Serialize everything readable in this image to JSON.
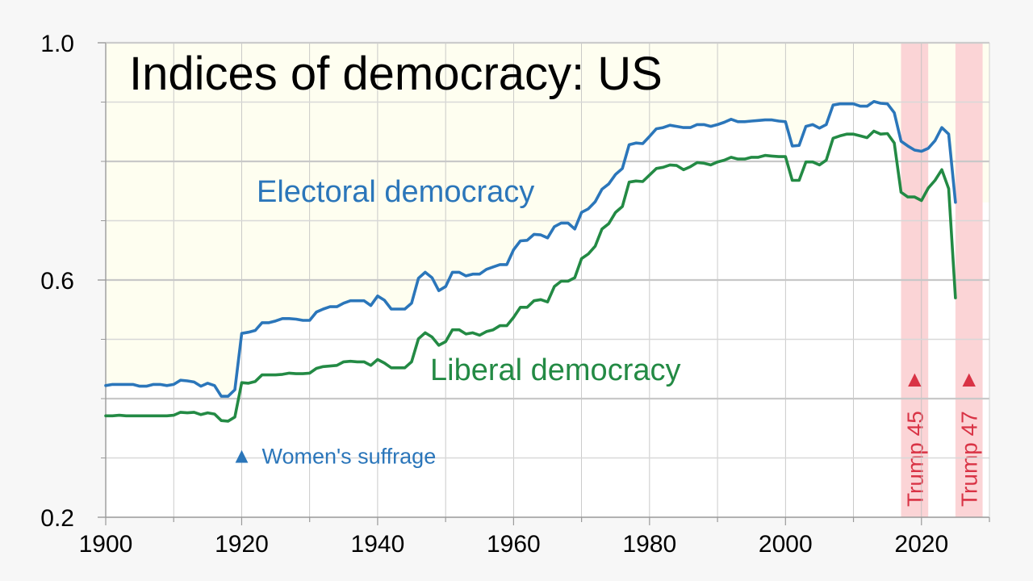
{
  "chart_data": {
    "type": "line",
    "title": "Indices of democracy: US",
    "xlabel": "",
    "ylabel": "",
    "xlim": [
      1900,
      2030
    ],
    "ylim": [
      0.2,
      1.0
    ],
    "x_ticks": [
      1900,
      1920,
      1940,
      1960,
      1980,
      2000,
      2020
    ],
    "x_tick_labels": [
      "1900",
      "1920",
      "1940",
      "1960",
      "1980",
      "2000",
      "2020"
    ],
    "y_ticks": [
      0.2,
      0.6,
      1.0
    ],
    "y_tick_labels": [
      "0.2",
      "0.6",
      "1.0"
    ],
    "grid": true,
    "legend": "inline",
    "colors": {
      "electoral": "#2b76ba",
      "liberal": "#238a44",
      "trump": "#d93345",
      "band": "#fbd4d6",
      "plot_bg_top": "#fefef0",
      "plot_bg": "#ffffff"
    },
    "series": [
      {
        "name": "Electoral democracy",
        "color": "#2b76ba",
        "x": [
          1900,
          1901,
          1902,
          1903,
          1904,
          1905,
          1906,
          1907,
          1908,
          1909,
          1910,
          1911,
          1912,
          1913,
          1914,
          1915,
          1916,
          1917,
          1918,
          1919,
          1920,
          1921,
          1922,
          1923,
          1924,
          1925,
          1926,
          1927,
          1928,
          1929,
          1930,
          1931,
          1932,
          1933,
          1934,
          1935,
          1936,
          1937,
          1938,
          1939,
          1940,
          1941,
          1942,
          1943,
          1944,
          1945,
          1946,
          1947,
          1948,
          1949,
          1950,
          1951,
          1952,
          1953,
          1954,
          1955,
          1956,
          1957,
          1958,
          1959,
          1960,
          1961,
          1962,
          1963,
          1964,
          1965,
          1966,
          1967,
          1968,
          1969,
          1970,
          1971,
          1972,
          1973,
          1974,
          1975,
          1976,
          1977,
          1978,
          1979,
          1980,
          1981,
          1982,
          1983,
          1984,
          1985,
          1986,
          1987,
          1988,
          1989,
          1990,
          1991,
          1992,
          1993,
          1994,
          1995,
          1996,
          1997,
          1998,
          1999,
          2000,
          2001,
          2002,
          2003,
          2004,
          2005,
          2006,
          2007,
          2008,
          2009,
          2010,
          2011,
          2012,
          2013,
          2014,
          2015,
          2016,
          2017,
          2018,
          2019,
          2020,
          2021,
          2022,
          2023,
          2024,
          2025
        ],
        "values": [
          0.422,
          0.424,
          0.424,
          0.424,
          0.424,
          0.421,
          0.421,
          0.424,
          0.424,
          0.422,
          0.424,
          0.431,
          0.43,
          0.428,
          0.421,
          0.426,
          0.422,
          0.404,
          0.404,
          0.415,
          0.51,
          0.512,
          0.515,
          0.528,
          0.528,
          0.531,
          0.535,
          0.535,
          0.534,
          0.532,
          0.532,
          0.546,
          0.551,
          0.555,
          0.555,
          0.561,
          0.565,
          0.565,
          0.565,
          0.557,
          0.573,
          0.566,
          0.551,
          0.551,
          0.551,
          0.561,
          0.603,
          0.613,
          0.604,
          0.582,
          0.589,
          0.613,
          0.613,
          0.607,
          0.61,
          0.61,
          0.618,
          0.622,
          0.626,
          0.626,
          0.651,
          0.666,
          0.667,
          0.677,
          0.676,
          0.671,
          0.69,
          0.696,
          0.696,
          0.686,
          0.714,
          0.72,
          0.732,
          0.753,
          0.762,
          0.778,
          0.788,
          0.828,
          0.831,
          0.83,
          0.842,
          0.855,
          0.857,
          0.861,
          0.859,
          0.857,
          0.857,
          0.862,
          0.862,
          0.859,
          0.862,
          0.866,
          0.871,
          0.867,
          0.867,
          0.868,
          0.869,
          0.87,
          0.87,
          0.868,
          0.867,
          0.826,
          0.827,
          0.859,
          0.862,
          0.856,
          0.862,
          0.895,
          0.897,
          0.897,
          0.897,
          0.893,
          0.893,
          0.901,
          0.898,
          0.897,
          0.882,
          0.834,
          0.826,
          0.819,
          0.817,
          0.822,
          0.835,
          0.857,
          0.846,
          0.731
        ]
      },
      {
        "name": "Liberal democracy",
        "color": "#238a44",
        "x": [
          1900,
          1901,
          1902,
          1903,
          1904,
          1905,
          1906,
          1907,
          1908,
          1909,
          1910,
          1911,
          1912,
          1913,
          1914,
          1915,
          1916,
          1917,
          1918,
          1919,
          1920,
          1921,
          1922,
          1923,
          1924,
          1925,
          1926,
          1927,
          1928,
          1929,
          1930,
          1931,
          1932,
          1933,
          1934,
          1935,
          1936,
          1937,
          1938,
          1939,
          1940,
          1941,
          1942,
          1943,
          1944,
          1945,
          1946,
          1947,
          1948,
          1949,
          1950,
          1951,
          1952,
          1953,
          1954,
          1955,
          1956,
          1957,
          1958,
          1959,
          1960,
          1961,
          1962,
          1963,
          1964,
          1965,
          1966,
          1967,
          1968,
          1969,
          1970,
          1971,
          1972,
          1973,
          1974,
          1975,
          1976,
          1977,
          1978,
          1979,
          1980,
          1981,
          1982,
          1983,
          1984,
          1985,
          1986,
          1987,
          1988,
          1989,
          1990,
          1991,
          1992,
          1993,
          1994,
          1995,
          1996,
          1997,
          1998,
          1999,
          2000,
          2001,
          2002,
          2003,
          2004,
          2005,
          2006,
          2007,
          2008,
          2009,
          2010,
          2011,
          2012,
          2013,
          2014,
          2015,
          2016,
          2017,
          2018,
          2019,
          2020,
          2021,
          2022,
          2023,
          2024,
          2025
        ],
        "values": [
          0.371,
          0.371,
          0.372,
          0.371,
          0.371,
          0.371,
          0.371,
          0.371,
          0.371,
          0.371,
          0.372,
          0.377,
          0.376,
          0.377,
          0.373,
          0.376,
          0.374,
          0.363,
          0.362,
          0.369,
          0.427,
          0.426,
          0.429,
          0.44,
          0.44,
          0.44,
          0.441,
          0.443,
          0.442,
          0.442,
          0.443,
          0.451,
          0.454,
          0.455,
          0.456,
          0.462,
          0.463,
          0.462,
          0.462,
          0.456,
          0.466,
          0.46,
          0.452,
          0.452,
          0.452,
          0.462,
          0.501,
          0.511,
          0.504,
          0.49,
          0.496,
          0.516,
          0.516,
          0.509,
          0.511,
          0.507,
          0.513,
          0.516,
          0.523,
          0.523,
          0.537,
          0.554,
          0.554,
          0.565,
          0.567,
          0.563,
          0.589,
          0.598,
          0.598,
          0.604,
          0.636,
          0.644,
          0.657,
          0.686,
          0.695,
          0.714,
          0.724,
          0.765,
          0.767,
          0.766,
          0.777,
          0.788,
          0.79,
          0.794,
          0.793,
          0.786,
          0.791,
          0.798,
          0.797,
          0.794,
          0.799,
          0.802,
          0.807,
          0.804,
          0.804,
          0.807,
          0.807,
          0.81,
          0.809,
          0.808,
          0.808,
          0.768,
          0.768,
          0.799,
          0.799,
          0.794,
          0.802,
          0.839,
          0.843,
          0.846,
          0.846,
          0.843,
          0.84,
          0.851,
          0.846,
          0.847,
          0.831,
          0.748,
          0.74,
          0.74,
          0.734,
          0.755,
          0.768,
          0.786,
          0.754,
          0.57
        ]
      }
    ],
    "series_labels": {
      "electoral": "Electoral democracy",
      "liberal": "Liberal democracy"
    },
    "annotations": [
      {
        "text": "Women's suffrage",
        "marker": "▲",
        "x": 1920,
        "y": 0.304,
        "color": "#2b76ba"
      }
    ],
    "bands": [
      {
        "label": "Trump 45",
        "marker": "▲",
        "start": 2017,
        "end": 2021
      },
      {
        "label": "Trump 47",
        "marker": "▲",
        "start": 2025,
        "end": 2029
      }
    ]
  }
}
